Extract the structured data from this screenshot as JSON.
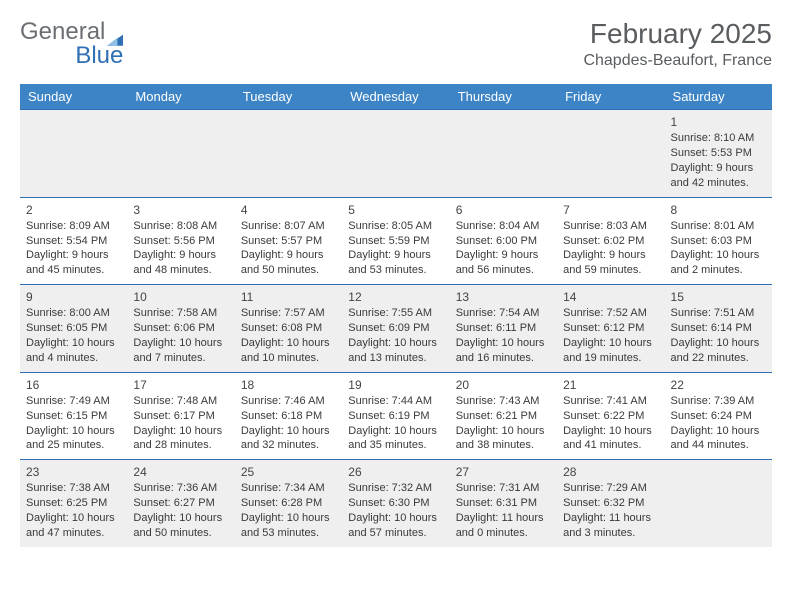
{
  "logo": {
    "text_general": "General",
    "text_blue": "Blue"
  },
  "header": {
    "month_title": "February 2025",
    "location": "Chapdes-Beaufort, France"
  },
  "colors": {
    "header_bg": "#3d84c6",
    "header_text": "#ffffff",
    "row_odd_bg": "#efefef",
    "row_even_bg": "#ffffff",
    "border": "#2f6fb3",
    "logo_gray": "#6b6f73",
    "logo_blue": "#2f6fb3"
  },
  "weekdays": [
    "Sunday",
    "Monday",
    "Tuesday",
    "Wednesday",
    "Thursday",
    "Friday",
    "Saturday"
  ],
  "weeks": [
    {
      "parity": "odd",
      "cells": [
        {
          "day": "",
          "sunrise": "",
          "sunset": "",
          "daylight": ""
        },
        {
          "day": "",
          "sunrise": "",
          "sunset": "",
          "daylight": ""
        },
        {
          "day": "",
          "sunrise": "",
          "sunset": "",
          "daylight": ""
        },
        {
          "day": "",
          "sunrise": "",
          "sunset": "",
          "daylight": ""
        },
        {
          "day": "",
          "sunrise": "",
          "sunset": "",
          "daylight": ""
        },
        {
          "day": "",
          "sunrise": "",
          "sunset": "",
          "daylight": ""
        },
        {
          "day": "1",
          "sunrise": "Sunrise: 8:10 AM",
          "sunset": "Sunset: 5:53 PM",
          "daylight": "Daylight: 9 hours and 42 minutes."
        }
      ]
    },
    {
      "parity": "even",
      "cells": [
        {
          "day": "2",
          "sunrise": "Sunrise: 8:09 AM",
          "sunset": "Sunset: 5:54 PM",
          "daylight": "Daylight: 9 hours and 45 minutes."
        },
        {
          "day": "3",
          "sunrise": "Sunrise: 8:08 AM",
          "sunset": "Sunset: 5:56 PM",
          "daylight": "Daylight: 9 hours and 48 minutes."
        },
        {
          "day": "4",
          "sunrise": "Sunrise: 8:07 AM",
          "sunset": "Sunset: 5:57 PM",
          "daylight": "Daylight: 9 hours and 50 minutes."
        },
        {
          "day": "5",
          "sunrise": "Sunrise: 8:05 AM",
          "sunset": "Sunset: 5:59 PM",
          "daylight": "Daylight: 9 hours and 53 minutes."
        },
        {
          "day": "6",
          "sunrise": "Sunrise: 8:04 AM",
          "sunset": "Sunset: 6:00 PM",
          "daylight": "Daylight: 9 hours and 56 minutes."
        },
        {
          "day": "7",
          "sunrise": "Sunrise: 8:03 AM",
          "sunset": "Sunset: 6:02 PM",
          "daylight": "Daylight: 9 hours and 59 minutes."
        },
        {
          "day": "8",
          "sunrise": "Sunrise: 8:01 AM",
          "sunset": "Sunset: 6:03 PM",
          "daylight": "Daylight: 10 hours and 2 minutes."
        }
      ]
    },
    {
      "parity": "odd",
      "cells": [
        {
          "day": "9",
          "sunrise": "Sunrise: 8:00 AM",
          "sunset": "Sunset: 6:05 PM",
          "daylight": "Daylight: 10 hours and 4 minutes."
        },
        {
          "day": "10",
          "sunrise": "Sunrise: 7:58 AM",
          "sunset": "Sunset: 6:06 PM",
          "daylight": "Daylight: 10 hours and 7 minutes."
        },
        {
          "day": "11",
          "sunrise": "Sunrise: 7:57 AM",
          "sunset": "Sunset: 6:08 PM",
          "daylight": "Daylight: 10 hours and 10 minutes."
        },
        {
          "day": "12",
          "sunrise": "Sunrise: 7:55 AM",
          "sunset": "Sunset: 6:09 PM",
          "daylight": "Daylight: 10 hours and 13 minutes."
        },
        {
          "day": "13",
          "sunrise": "Sunrise: 7:54 AM",
          "sunset": "Sunset: 6:11 PM",
          "daylight": "Daylight: 10 hours and 16 minutes."
        },
        {
          "day": "14",
          "sunrise": "Sunrise: 7:52 AM",
          "sunset": "Sunset: 6:12 PM",
          "daylight": "Daylight: 10 hours and 19 minutes."
        },
        {
          "day": "15",
          "sunrise": "Sunrise: 7:51 AM",
          "sunset": "Sunset: 6:14 PM",
          "daylight": "Daylight: 10 hours and 22 minutes."
        }
      ]
    },
    {
      "parity": "even",
      "cells": [
        {
          "day": "16",
          "sunrise": "Sunrise: 7:49 AM",
          "sunset": "Sunset: 6:15 PM",
          "daylight": "Daylight: 10 hours and 25 minutes."
        },
        {
          "day": "17",
          "sunrise": "Sunrise: 7:48 AM",
          "sunset": "Sunset: 6:17 PM",
          "daylight": "Daylight: 10 hours and 28 minutes."
        },
        {
          "day": "18",
          "sunrise": "Sunrise: 7:46 AM",
          "sunset": "Sunset: 6:18 PM",
          "daylight": "Daylight: 10 hours and 32 minutes."
        },
        {
          "day": "19",
          "sunrise": "Sunrise: 7:44 AM",
          "sunset": "Sunset: 6:19 PM",
          "daylight": "Daylight: 10 hours and 35 minutes."
        },
        {
          "day": "20",
          "sunrise": "Sunrise: 7:43 AM",
          "sunset": "Sunset: 6:21 PM",
          "daylight": "Daylight: 10 hours and 38 minutes."
        },
        {
          "day": "21",
          "sunrise": "Sunrise: 7:41 AM",
          "sunset": "Sunset: 6:22 PM",
          "daylight": "Daylight: 10 hours and 41 minutes."
        },
        {
          "day": "22",
          "sunrise": "Sunrise: 7:39 AM",
          "sunset": "Sunset: 6:24 PM",
          "daylight": "Daylight: 10 hours and 44 minutes."
        }
      ]
    },
    {
      "parity": "odd",
      "cells": [
        {
          "day": "23",
          "sunrise": "Sunrise: 7:38 AM",
          "sunset": "Sunset: 6:25 PM",
          "daylight": "Daylight: 10 hours and 47 minutes."
        },
        {
          "day": "24",
          "sunrise": "Sunrise: 7:36 AM",
          "sunset": "Sunset: 6:27 PM",
          "daylight": "Daylight: 10 hours and 50 minutes."
        },
        {
          "day": "25",
          "sunrise": "Sunrise: 7:34 AM",
          "sunset": "Sunset: 6:28 PM",
          "daylight": "Daylight: 10 hours and 53 minutes."
        },
        {
          "day": "26",
          "sunrise": "Sunrise: 7:32 AM",
          "sunset": "Sunset: 6:30 PM",
          "daylight": "Daylight: 10 hours and 57 minutes."
        },
        {
          "day": "27",
          "sunrise": "Sunrise: 7:31 AM",
          "sunset": "Sunset: 6:31 PM",
          "daylight": "Daylight: 11 hours and 0 minutes."
        },
        {
          "day": "28",
          "sunrise": "Sunrise: 7:29 AM",
          "sunset": "Sunset: 6:32 PM",
          "daylight": "Daylight: 11 hours and 3 minutes."
        },
        {
          "day": "",
          "sunrise": "",
          "sunset": "",
          "daylight": ""
        }
      ]
    }
  ]
}
